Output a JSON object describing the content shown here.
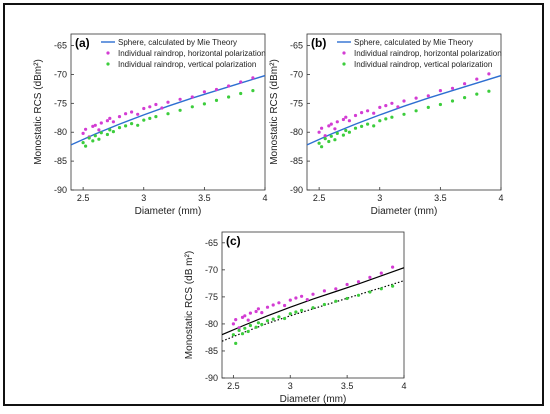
{
  "figure": {
    "panel_labels": [
      "(a)",
      "(b)",
      "(c)"
    ],
    "legend_sphere": "Sphere, calculated by Mie Theory",
    "legend_horizontal": "Individual raindrop, horizontal polarization",
    "legend_vertical": "Individual raindrop, vertical polarization",
    "xlabel": "Diameter (mm)",
    "ylabel_ab": "Monostatic RCS (dBm²)",
    "ylabel_c": "Monostatic RCS (dB m²)"
  },
  "colors": {
    "sphere": "#2e6fd1",
    "horizontal": "#d33cd3",
    "vertical": "#3ccd3c",
    "fit_c": "#000000"
  },
  "chart_data": [
    {
      "type": "scatter",
      "panel": "(a)",
      "xlabel": "Diameter (mm)",
      "ylabel": "Monostatic RCS (dBm²)",
      "xlim": [
        2.4,
        4.0
      ],
      "ylim": [
        -90,
        -63
      ],
      "xticks": [
        2.5,
        3,
        3.5,
        4
      ],
      "yticks": [
        -65,
        -70,
        -75,
        -80,
        -85,
        -90
      ],
      "legend": "top-left",
      "grid": false,
      "series": [
        {
          "name": "Sphere, calculated by Mie Theory",
          "kind": "line",
          "x": [
            2.4,
            2.6,
            2.8,
            3.0,
            3.2,
            3.4,
            3.6,
            3.8,
            4.0
          ],
          "y": [
            -82.2,
            -80.3,
            -78.6,
            -77.0,
            -75.5,
            -74.1,
            -72.8,
            -71.5,
            -70.2
          ]
        },
        {
          "name": "Individual raindrop, horizontal polarization",
          "kind": "scatter",
          "x": [
            2.5,
            2.52,
            2.55,
            2.58,
            2.6,
            2.63,
            2.65,
            2.7,
            2.72,
            2.75,
            2.8,
            2.85,
            2.9,
            2.95,
            3.0,
            3.05,
            3.1,
            3.15,
            3.2,
            3.3,
            3.4,
            3.5,
            3.6,
            3.7,
            3.8,
            3.9
          ],
          "y": [
            -80.2,
            -79.5,
            -80.8,
            -79.0,
            -78.8,
            -79.6,
            -78.4,
            -78.0,
            -77.6,
            -78.2,
            -77.3,
            -76.8,
            -76.5,
            -76.9,
            -75.9,
            -75.6,
            -75.2,
            -75.8,
            -74.8,
            -74.3,
            -73.9,
            -73.0,
            -72.6,
            -72.0,
            -71.3,
            -70.6
          ]
        },
        {
          "name": "Individual raindrop, vertical polarization",
          "kind": "scatter",
          "x": [
            2.5,
            2.52,
            2.55,
            2.58,
            2.6,
            2.63,
            2.65,
            2.7,
            2.72,
            2.75,
            2.8,
            2.85,
            2.9,
            2.95,
            3.0,
            3.05,
            3.1,
            3.2,
            3.3,
            3.4,
            3.5,
            3.6,
            3.7,
            3.8,
            3.9
          ],
          "y": [
            -81.8,
            -82.4,
            -81.0,
            -81.5,
            -80.6,
            -81.2,
            -80.1,
            -80.4,
            -79.6,
            -79.9,
            -79.2,
            -78.9,
            -78.5,
            -78.8,
            -77.9,
            -77.6,
            -77.3,
            -76.8,
            -76.2,
            -75.6,
            -75.1,
            -74.5,
            -73.9,
            -73.3,
            -72.8
          ]
        }
      ]
    },
    {
      "type": "scatter",
      "panel": "(b)",
      "xlabel": "Diameter (mm)",
      "ylabel": "Monostatic RCS (dBm²)",
      "xlim": [
        2.4,
        4.0
      ],
      "ylim": [
        -90,
        -63
      ],
      "xticks": [
        2.5,
        3,
        3.5,
        4
      ],
      "yticks": [
        -65,
        -70,
        -75,
        -80,
        -85,
        -90
      ],
      "legend": "top-left",
      "grid": false,
      "series": [
        {
          "name": "Sphere, calculated by Mie Theory",
          "kind": "line",
          "x": [
            2.4,
            2.6,
            2.8,
            3.0,
            3.2,
            3.4,
            3.6,
            3.8,
            4.0
          ],
          "y": [
            -82.2,
            -80.3,
            -78.6,
            -77.0,
            -75.5,
            -74.1,
            -72.8,
            -71.5,
            -70.2
          ]
        },
        {
          "name": "Individual raindrop, horizontal polarization",
          "kind": "scatter",
          "x": [
            2.5,
            2.52,
            2.55,
            2.58,
            2.6,
            2.63,
            2.65,
            2.7,
            2.72,
            2.75,
            2.8,
            2.85,
            2.9,
            2.95,
            3.0,
            3.05,
            3.1,
            3.15,
            3.2,
            3.3,
            3.4,
            3.5,
            3.6,
            3.7,
            3.8,
            3.9
          ],
          "y": [
            -80.0,
            -79.3,
            -80.6,
            -78.9,
            -78.6,
            -79.4,
            -78.2,
            -77.8,
            -77.4,
            -78.0,
            -77.1,
            -76.6,
            -76.3,
            -76.7,
            -75.7,
            -75.4,
            -75.0,
            -75.6,
            -74.6,
            -74.1,
            -73.7,
            -72.8,
            -72.4,
            -71.6,
            -70.8,
            -69.9
          ]
        },
        {
          "name": "Individual raindrop, vertical polarization",
          "kind": "scatter",
          "x": [
            2.5,
            2.52,
            2.55,
            2.58,
            2.6,
            2.63,
            2.65,
            2.7,
            2.72,
            2.75,
            2.8,
            2.85,
            2.9,
            2.95,
            3.0,
            3.05,
            3.1,
            3.2,
            3.3,
            3.4,
            3.5,
            3.6,
            3.7,
            3.8,
            3.9
          ],
          "y": [
            -81.9,
            -82.5,
            -81.1,
            -81.6,
            -80.7,
            -81.3,
            -80.2,
            -80.5,
            -79.7,
            -80.0,
            -79.3,
            -79.0,
            -78.6,
            -78.9,
            -78.0,
            -77.7,
            -77.4,
            -76.9,
            -76.3,
            -75.7,
            -75.2,
            -74.6,
            -74.0,
            -73.4,
            -72.9
          ]
        }
      ]
    },
    {
      "type": "scatter",
      "panel": "(c)",
      "xlabel": "Diameter (mm)",
      "ylabel": "Monostatic RCS (dB m²)",
      "xlim": [
        2.4,
        4.0
      ],
      "ylim": [
        -90,
        -63
      ],
      "xticks": [
        2.5,
        3,
        3.5,
        4
      ],
      "yticks": [
        -65,
        -70,
        -75,
        -80,
        -85,
        -90
      ],
      "legend": "none",
      "grid": false,
      "series": [
        {
          "kind": "line",
          "style": "solid",
          "x": [
            2.4,
            2.6,
            2.8,
            3.0,
            3.2,
            3.4,
            3.6,
            3.8,
            4.0
          ],
          "y": [
            -82.0,
            -80.2,
            -78.5,
            -76.9,
            -75.4,
            -74.0,
            -72.6,
            -71.1,
            -69.6
          ]
        },
        {
          "kind": "line",
          "style": "dotted",
          "x": [
            2.4,
            2.6,
            2.8,
            3.0,
            3.2,
            3.4,
            3.6,
            3.8,
            4.0
          ],
          "y": [
            -83.2,
            -81.5,
            -79.9,
            -78.5,
            -77.2,
            -75.9,
            -74.6,
            -73.3,
            -72.0
          ]
        },
        {
          "kind": "scatter",
          "color": "#d33cd3",
          "x": [
            2.5,
            2.52,
            2.55,
            2.58,
            2.6,
            2.63,
            2.65,
            2.7,
            2.72,
            2.75,
            2.8,
            2.85,
            2.9,
            2.95,
            3.0,
            3.05,
            3.1,
            3.15,
            3.2,
            3.3,
            3.4,
            3.5,
            3.6,
            3.7,
            3.8,
            3.9
          ],
          "y": [
            -80.0,
            -79.2,
            -80.7,
            -78.8,
            -78.5,
            -79.3,
            -78.0,
            -77.7,
            -77.2,
            -77.9,
            -76.9,
            -76.5,
            -76.1,
            -76.6,
            -75.6,
            -75.2,
            -74.9,
            -75.5,
            -74.5,
            -73.9,
            -73.5,
            -72.7,
            -72.2,
            -71.4,
            -70.6,
            -69.5
          ]
        },
        {
          "kind": "scatter",
          "color": "#3ccd3c",
          "x": [
            2.5,
            2.52,
            2.55,
            2.58,
            2.6,
            2.63,
            2.65,
            2.7,
            2.72,
            2.75,
            2.8,
            2.85,
            2.9,
            2.95,
            3.0,
            3.05,
            3.1,
            3.2,
            3.3,
            3.4,
            3.5,
            3.6,
            3.7,
            3.8,
            3.9
          ],
          "y": [
            -82.0,
            -83.6,
            -81.2,
            -81.8,
            -80.8,
            -81.4,
            -80.3,
            -80.6,
            -79.8,
            -80.1,
            -79.4,
            -79.1,
            -78.7,
            -79.0,
            -78.1,
            -77.8,
            -77.5,
            -77.0,
            -76.4,
            -75.8,
            -75.3,
            -74.7,
            -74.1,
            -73.5,
            -73.0
          ]
        }
      ]
    }
  ]
}
